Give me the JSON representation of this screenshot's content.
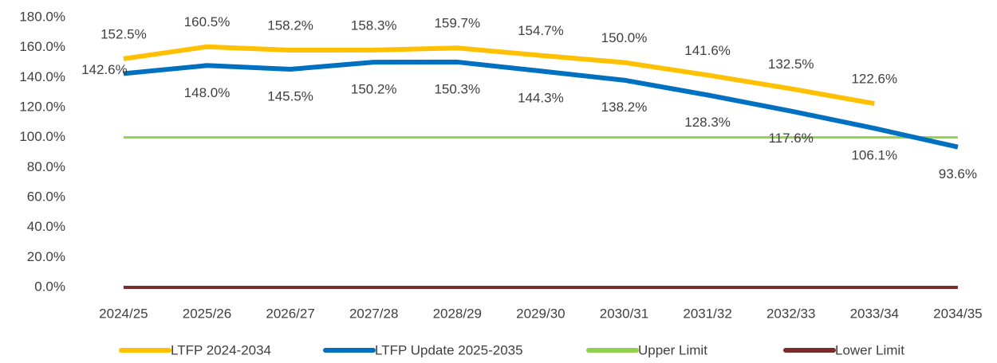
{
  "chart_data": {
    "type": "line",
    "categories": [
      "2024/25",
      "2025/26",
      "2026/27",
      "2027/28",
      "2028/29",
      "2029/30",
      "2030/31",
      "2031/32",
      "2032/33",
      "2033/34",
      "2034/35"
    ],
    "series": [
      {
        "name": "LTFP 2024-2034",
        "color": "#FFC000",
        "width": 6,
        "values": [
          152.5,
          160.5,
          158.2,
          158.3,
          159.7,
          154.7,
          150.0,
          141.6,
          132.5,
          122.6,
          null
        ],
        "value_labels": [
          "152.5%",
          "160.5%",
          "158.2%",
          "158.3%",
          "159.7%",
          "154.7%",
          "150.0%",
          "141.6%",
          "132.5%",
          "122.6%",
          null
        ]
      },
      {
        "name": "LTFP Update 2025-2035",
        "color": "#0070C0",
        "width": 6,
        "values": [
          142.6,
          148.0,
          145.5,
          150.2,
          150.3,
          144.3,
          138.2,
          128.3,
          117.6,
          106.1,
          93.6
        ],
        "value_labels": [
          "142.6%",
          "148.0%",
          "145.5%",
          "150.2%",
          "150.3%",
          "144.3%",
          "138.2%",
          "128.3%",
          "117.6%",
          "106.1%",
          "93.6%"
        ]
      },
      {
        "name": "Upper Limit",
        "color": "#92D050",
        "width": 3,
        "values": [
          100,
          100,
          100,
          100,
          100,
          100,
          100,
          100,
          100,
          100,
          100
        ]
      },
      {
        "name": "Lower Limit",
        "color": "#7B2C2C",
        "width": 4,
        "values": [
          0,
          0,
          0,
          0,
          0,
          0,
          0,
          0,
          0,
          0,
          0
        ]
      }
    ],
    "ylim": [
      0,
      180
    ],
    "yticks": [
      {
        "value": 0,
        "label": "0.0%"
      },
      {
        "value": 20,
        "label": "20.0%"
      },
      {
        "value": 40,
        "label": "40.0%"
      },
      {
        "value": 60,
        "label": "60.0%"
      },
      {
        "value": 80,
        "label": "80.0%"
      },
      {
        "value": 100,
        "label": "100.0%"
      },
      {
        "value": 120,
        "label": "120.0%"
      },
      {
        "value": 140,
        "label": "140.0%"
      },
      {
        "value": 160,
        "label": "160.0%"
      },
      {
        "value": 180,
        "label": "180.0%"
      }
    ],
    "grid": false,
    "legend": "bottom"
  }
}
